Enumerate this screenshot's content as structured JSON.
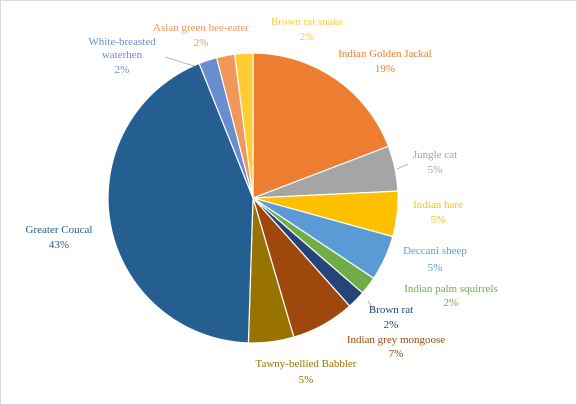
{
  "chart_data": {
    "type": "pie",
    "title": "",
    "start": "12 o'clock",
    "direction": "clockwise",
    "slices": [
      {
        "label": "Indian Golden Jackal",
        "percent_label": "19%",
        "value": 19,
        "color": "#ED7D31"
      },
      {
        "label": "Jungle cat",
        "percent_label": "5%",
        "value": 5,
        "color": "#A5A5A5"
      },
      {
        "label": "Indian hare",
        "percent_label": "5%",
        "value": 5,
        "color": "#FFC000"
      },
      {
        "label": "Deccani sheep",
        "percent_label": "5%",
        "value": 5,
        "color": "#5B9BD5"
      },
      {
        "label": "Indian palm squirrels",
        "percent_label": "2%",
        "value": 2,
        "color": "#70AD47"
      },
      {
        "label": "Brown rat",
        "percent_label": "2%",
        "value": 2,
        "color": "#264478"
      },
      {
        "label": "Indian grey mongoose",
        "percent_label": "7%",
        "value": 7,
        "color": "#9E480E"
      },
      {
        "label": "Tawny-bellied Babbler",
        "percent_label": "5%",
        "value": 5,
        "color": "#997300"
      },
      {
        "label": "Greater Coucal",
        "percent_label": "43%",
        "value": 43,
        "color": "#255E91"
      },
      {
        "label": "White-breasted waterhen",
        "percent_label": "2%",
        "value": 2,
        "color": "#698ED0"
      },
      {
        "label": "Asian green bee-eater",
        "percent_label": "2%",
        "value": 2,
        "color": "#F1975A"
      },
      {
        "label": "Brown rat snake",
        "percent_label": "2%",
        "value": 2,
        "color": "#FFCD33"
      }
    ]
  }
}
